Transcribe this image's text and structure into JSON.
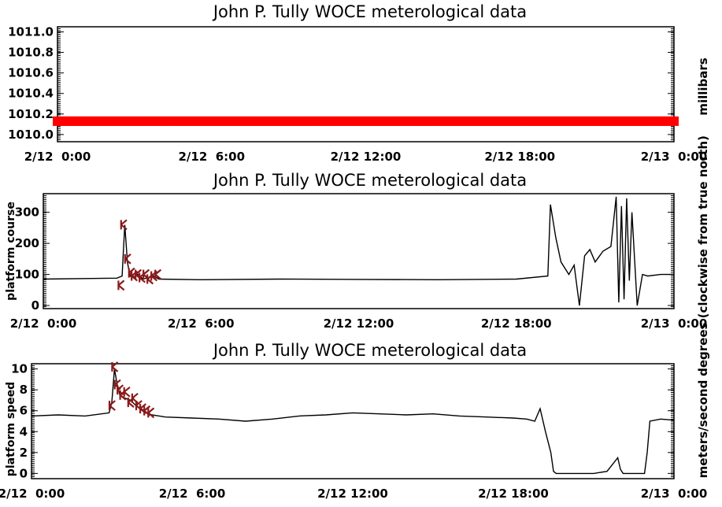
{
  "chart_data": [
    {
      "type": "scatter",
      "title": "John P. Tully WOCE meterological data",
      "ylabel_right": "millibars",
      "ylim": [
        1009.93,
        1011.05
      ],
      "yticks": [
        "1010.0",
        "1010.2",
        "1010.4",
        "1010.6",
        "1010.8",
        "1011.0"
      ],
      "yticks_values": [
        1010.0,
        1010.2,
        1010.4,
        1010.6,
        1010.8,
        1011.0
      ],
      "xlim_hours": [
        0,
        24
      ],
      "xticks": [
        "2/12  0:00",
        "2/12  6:00",
        "2/12 12:00",
        "2/12 18:00",
        "2/13  0:00"
      ],
      "marker_color": "#ff0000",
      "series": [
        {
          "x_hours_range": [
            0,
            24
          ],
          "y_constant": 1010.13
        }
      ]
    },
    {
      "type": "line",
      "title": "John P. Tully WOCE meterological data",
      "ylabel": "platform course",
      "ylabel_right": "degrees (clockwise from true north)",
      "ylim": [
        -10,
        360
      ],
      "yticks": [
        "0",
        "100",
        "200",
        "300"
      ],
      "yticks_values": [
        0,
        100,
        200,
        300
      ],
      "xlim_hours": [
        0,
        24
      ],
      "xticks": [
        "2/12  0:00",
        "2/12  6:00",
        "2/12 12:00",
        "2/12 18:00",
        "2/13  0:00"
      ],
      "line_color": "#000000",
      "marker_color": "#8b1a1a",
      "series": [
        {
          "x_hours": [
            0,
            2.8,
            3.0,
            3.05,
            3.1,
            3.2,
            3.3,
            3.4,
            3.6,
            3.8,
            4.0,
            4.2,
            4.4,
            6,
            9,
            12,
            15,
            18,
            19.2,
            19.3,
            19.5,
            19.7,
            20.0,
            20.2,
            20.4,
            20.6,
            20.8,
            21.0,
            21.3,
            21.6,
            21.8,
            21.9,
            22.0,
            22.1,
            22.2,
            22.3,
            22.4,
            22.6,
            22.8,
            23.0,
            23.5,
            24
          ],
          "y": [
            85,
            88,
            95,
            180,
            260,
            140,
            95,
            90,
            100,
            85,
            90,
            95,
            85,
            83,
            85,
            84,
            83,
            85,
            95,
            325,
            220,
            140,
            100,
            130,
            0,
            160,
            180,
            140,
            175,
            190,
            350,
            10,
            320,
            20,
            345,
            80,
            300,
            0,
            100,
            95,
            100,
            100
          ]
        },
        {
          "marker_x_hours": [
            2.95,
            3.05,
            3.2,
            3.35,
            3.45,
            3.6,
            3.75,
            3.9,
            4.05,
            4.2,
            4.35
          ],
          "marker_y": [
            65,
            260,
            150,
            105,
            95,
            100,
            90,
            100,
            85,
            95,
            100
          ]
        }
      ]
    },
    {
      "type": "line",
      "title": "John P. Tully WOCE meterological data",
      "ylabel": "platform speed",
      "ylabel_right": "meters/second",
      "ylim": [
        -0.5,
        10.5
      ],
      "yticks": [
        "0",
        "2",
        "4",
        "6",
        "8",
        "10"
      ],
      "yticks_values": [
        0,
        2,
        4,
        6,
        8,
        10
      ],
      "xlim_hours": [
        0,
        24
      ],
      "xticks": [
        "2/12  0:00",
        "2/12  6:00",
        "2/12 12:00",
        "2/12 18:00",
        "2/13  0:00"
      ],
      "line_color": "#000000",
      "marker_color": "#8b1a1a",
      "series": [
        {
          "x_hours": [
            0,
            1,
            2,
            2.9,
            3.0,
            3.1,
            3.2,
            3.3,
            3.5,
            3.7,
            3.9,
            4.1,
            4.3,
            4.5,
            5,
            6,
            7,
            8,
            9,
            10,
            11,
            12,
            13,
            14,
            15,
            16,
            17,
            18,
            18.5,
            18.8,
            19.0,
            19.2,
            19.4,
            19.5,
            19.6,
            20.0,
            21.0,
            21.5,
            21.9,
            22.0,
            22.1,
            22.4,
            22.9,
            23.0,
            23.1,
            23.5,
            24
          ],
          "y": [
            5.5,
            5.6,
            5.5,
            5.8,
            6.8,
            10.0,
            8.5,
            7.5,
            7.2,
            7.0,
            6.5,
            6.2,
            5.8,
            5.6,
            5.4,
            5.3,
            5.2,
            5.0,
            5.2,
            5.5,
            5.6,
            5.8,
            5.7,
            5.6,
            5.7,
            5.5,
            5.4,
            5.3,
            5.2,
            5.0,
            6.2,
            4.0,
            2.0,
            0.2,
            0.0,
            0.0,
            0.0,
            0.2,
            1.5,
            0.4,
            0.0,
            0.0,
            0.0,
            2.0,
            5.0,
            5.2,
            5.1
          ]
        },
        {
          "marker_x_hours": [
            3.0,
            3.1,
            3.2,
            3.3,
            3.4,
            3.55,
            3.7,
            3.85,
            4.0,
            4.15,
            4.3,
            4.45
          ],
          "marker_y": [
            6.5,
            10.2,
            8.5,
            8.0,
            7.5,
            7.8,
            6.8,
            7.2,
            6.5,
            6.2,
            6.0,
            5.8
          ]
        }
      ]
    }
  ]
}
